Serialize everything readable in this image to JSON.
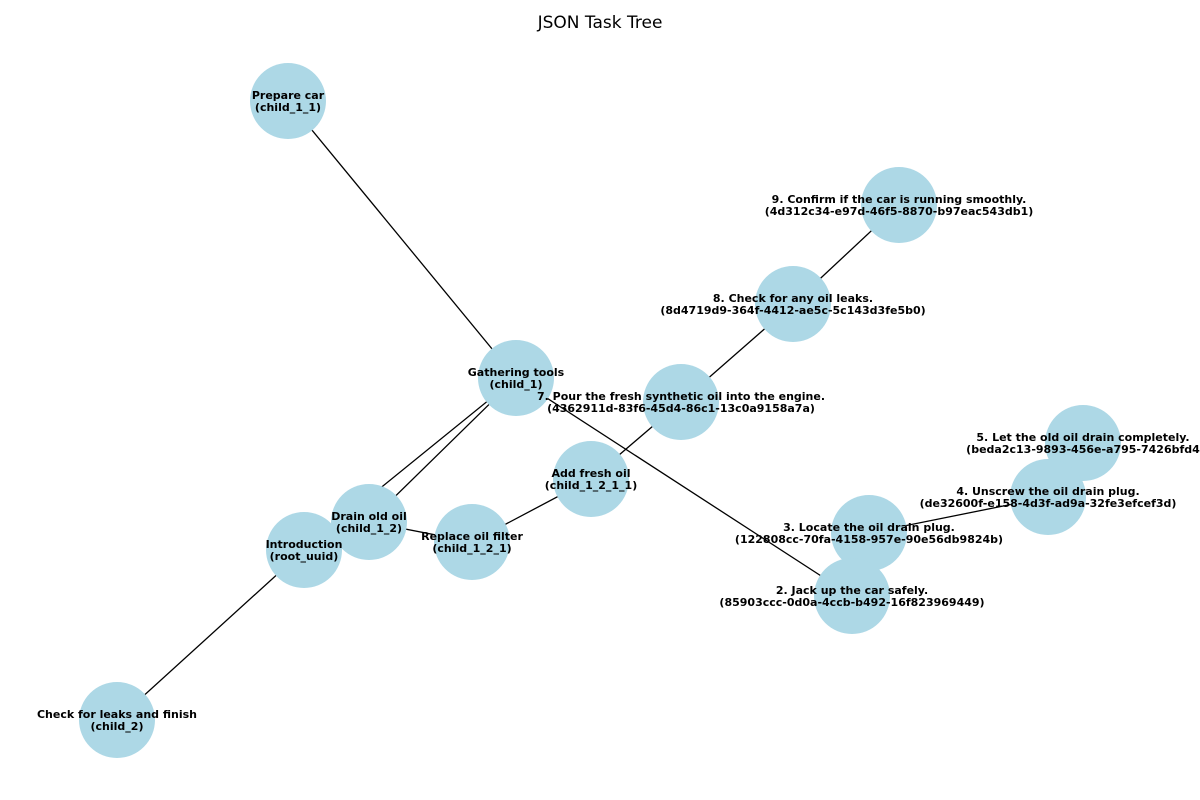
{
  "diagram": {
    "title": "JSON Task Tree",
    "nodes": [
      {
        "id": "child_1_1",
        "lines": [
          "Prepare car",
          "(child_1_1)"
        ]
      },
      {
        "id": "child_1",
        "lines": [
          "Gathering tools",
          "(child_1)"
        ]
      },
      {
        "id": "9",
        "lines": [
          "9. Confirm if the car is running smoothly.",
          "(4d312c34-e97d-46f5-8870-b97eac543db1)"
        ]
      },
      {
        "id": "8",
        "lines": [
          "8. Check for any oil leaks.",
          "(8d4719d9-364f-4412-ae5c-5c143d3fe5b0)"
        ]
      },
      {
        "id": "7",
        "lines": [
          "7. Pour the fresh synthetic oil into the engine.",
          "(4362911d-83f6-45d4-86c1-13c0a9158a7a)"
        ]
      },
      {
        "id": "child_1_2_1_1",
        "lines": [
          "Add fresh oil",
          "(child_1_2_1_1)"
        ]
      },
      {
        "id": "child_1_2_1",
        "lines": [
          "Replace oil filter",
          "(child_1_2_1)"
        ]
      },
      {
        "id": "child_1_2",
        "lines": [
          "Drain old oil",
          "(child_1_2)"
        ]
      },
      {
        "id": "root_uuid",
        "lines": [
          "Introduction",
          "(root_uuid)"
        ]
      },
      {
        "id": "child_2",
        "lines": [
          "Check for leaks and finish",
          "(child_2)"
        ]
      },
      {
        "id": "5",
        "lines": [
          "5. Let the old oil drain completely.",
          "(beda2c13-9893-456e-a795-7426bfd4"
        ]
      },
      {
        "id": "4",
        "lines": [
          "4. Unscrew the oil drain plug.",
          "(de32600f-e158-4d3f-ad9a-32fe3efcef3d)"
        ]
      },
      {
        "id": "3",
        "lines": [
          "3. Locate the oil drain plug.",
          "(122808cc-70fa-4158-957e-90e56db9824b)"
        ]
      },
      {
        "id": "2",
        "lines": [
          "2. Jack up the car safely.",
          "(85903ccc-0d0a-4ccb-b492-16f823969449)"
        ]
      }
    ],
    "edges": [
      [
        "child_1_1",
        "child_1"
      ],
      [
        "child_1",
        "child_1_2"
      ],
      [
        "child_1",
        "root_uuid"
      ],
      [
        "child_1",
        "2"
      ],
      [
        "child_1_2",
        "child_1_2_1"
      ],
      [
        "child_1_2_1",
        "child_1_2_1_1"
      ],
      [
        "child_1_2_1_1",
        "7"
      ],
      [
        "7",
        "8"
      ],
      [
        "8",
        "9"
      ],
      [
        "root_uuid",
        "child_2"
      ],
      [
        "2",
        "3"
      ],
      [
        "3",
        "4"
      ],
      [
        "4",
        "5"
      ]
    ]
  }
}
